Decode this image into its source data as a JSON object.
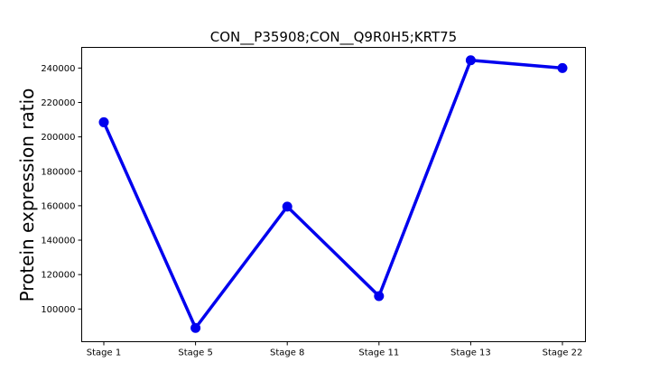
{
  "chart_data": {
    "type": "line",
    "title": "CON__P35908;CON__Q9R0H5;KRT75",
    "xlabel": "",
    "ylabel": "Protein expression ratio",
    "categories": [
      "Stage 1",
      "Stage 5",
      "Stage 8",
      "Stage 11",
      "Stage 13",
      "Stage 22"
    ],
    "series": [
      {
        "values": [
          208500,
          89000,
          159500,
          107500,
          244500,
          240000
        ],
        "color": "#0000ee"
      }
    ],
    "yticks": [
      100000,
      120000,
      140000,
      160000,
      180000,
      200000,
      220000,
      240000
    ],
    "yticklabels": [
      "100000",
      "120000",
      "140000",
      "160000",
      "180000",
      "200000",
      "220000",
      "240000"
    ],
    "ylim": [
      81000,
      252000
    ],
    "grid": false,
    "legend": "none"
  }
}
